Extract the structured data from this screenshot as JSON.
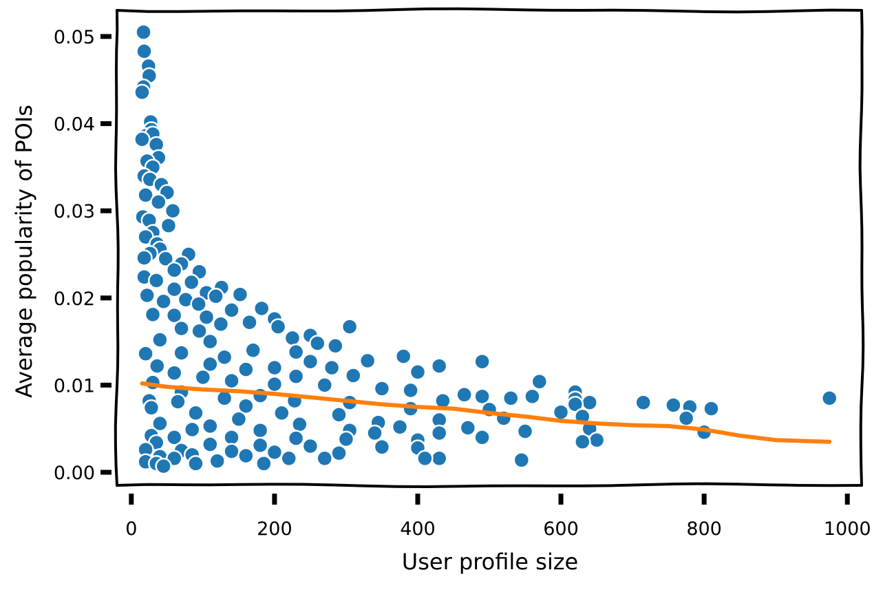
{
  "chart_data": {
    "type": "scatter",
    "title": "",
    "xlabel": "User profile size",
    "ylabel": "Average popularity of POIs",
    "xlim": [
      -20,
      1020
    ],
    "ylim": [
      -0.0015,
      0.053
    ],
    "xticks": [
      0,
      200,
      400,
      600,
      800,
      1000
    ],
    "xtick_labels": [
      "0",
      "200",
      "400",
      "600",
      "800",
      "1000"
    ],
    "yticks": [
      0.0,
      0.01,
      0.02,
      0.03,
      0.04,
      0.05
    ],
    "ytick_labels": [
      "0.00",
      "0.01",
      "0.02",
      "0.03",
      "0.04",
      "0.05"
    ],
    "grid": false,
    "style": "xkcd",
    "series": [
      {
        "kind": "scatter",
        "color": "#1f77b4",
        "edge_color": "#ffffff",
        "points": [
          [
            17,
            0.0505
          ],
          [
            18,
            0.0483
          ],
          [
            24,
            0.0466
          ],
          [
            25,
            0.0455
          ],
          [
            17,
            0.0442
          ],
          [
            15,
            0.0436
          ],
          [
            27,
            0.0402
          ],
          [
            28,
            0.0393
          ],
          [
            20,
            0.0386
          ],
          [
            30,
            0.0388
          ],
          [
            15,
            0.0382
          ],
          [
            35,
            0.0376
          ],
          [
            38,
            0.0361
          ],
          [
            22,
            0.0357
          ],
          [
            30,
            0.035
          ],
          [
            18,
            0.034
          ],
          [
            26,
            0.0336
          ],
          [
            42,
            0.033
          ],
          [
            50,
            0.0321
          ],
          [
            20,
            0.0318
          ],
          [
            38,
            0.031
          ],
          [
            58,
            0.03
          ],
          [
            16,
            0.0293
          ],
          [
            25,
            0.0289
          ],
          [
            52,
            0.0283
          ],
          [
            30,
            0.0275
          ],
          [
            20,
            0.027
          ],
          [
            36,
            0.0262
          ],
          [
            40,
            0.0256
          ],
          [
            26,
            0.0251
          ],
          [
            80,
            0.025
          ],
          [
            18,
            0.0246
          ],
          [
            48,
            0.0245
          ],
          [
            70,
            0.0239
          ],
          [
            60,
            0.0232
          ],
          [
            95,
            0.023
          ],
          [
            18,
            0.0224
          ],
          [
            35,
            0.022
          ],
          [
            84,
            0.0218
          ],
          [
            126,
            0.0212
          ],
          [
            60,
            0.021
          ],
          [
            105,
            0.0206
          ],
          [
            22,
            0.0203
          ],
          [
            152,
            0.0204
          ],
          [
            118,
            0.0202
          ],
          [
            76,
            0.0198
          ],
          [
            45,
            0.0196
          ],
          [
            94,
            0.0193
          ],
          [
            182,
            0.0188
          ],
          [
            140,
            0.0186
          ],
          [
            30,
            0.0181
          ],
          [
            60,
            0.018
          ],
          [
            105,
            0.0178
          ],
          [
            200,
            0.0176
          ],
          [
            165,
            0.0172
          ],
          [
            125,
            0.017
          ],
          [
            205,
            0.0167
          ],
          [
            305,
            0.0167
          ],
          [
            70,
            0.0165
          ],
          [
            95,
            0.0162
          ],
          [
            250,
            0.0157
          ],
          [
            225,
            0.0154
          ],
          [
            40,
            0.0152
          ],
          [
            110,
            0.015
          ],
          [
            260,
            0.0148
          ],
          [
            285,
            0.0145
          ],
          [
            170,
            0.014
          ],
          [
            230,
            0.0138
          ],
          [
            70,
            0.0137
          ],
          [
            20,
            0.0136
          ],
          [
            380,
            0.0133
          ],
          [
            130,
            0.0132
          ],
          [
            330,
            0.0128
          ],
          [
            490,
            0.0127
          ],
          [
            250,
            0.0127
          ],
          [
            110,
            0.0124
          ],
          [
            36,
            0.0122
          ],
          [
            430,
            0.0122
          ],
          [
            200,
            0.012
          ],
          [
            280,
            0.012
          ],
          [
            160,
            0.0118
          ],
          [
            400,
            0.0115
          ],
          [
            60,
            0.0114
          ],
          [
            310,
            0.0111
          ],
          [
            230,
            0.011
          ],
          [
            100,
            0.0109
          ],
          [
            140,
            0.0105
          ],
          [
            30,
            0.0103
          ],
          [
            570,
            0.0104
          ],
          [
            200,
            0.0101
          ],
          [
            270,
            0.01
          ],
          [
            350,
            0.0096
          ],
          [
            390,
            0.0094
          ],
          [
            620,
            0.0092
          ],
          [
            70,
            0.0092
          ],
          [
            465,
            0.0089
          ],
          [
            180,
            0.0088
          ],
          [
            490,
            0.0087
          ],
          [
            560,
            0.0087
          ],
          [
            530,
            0.0085
          ],
          [
            130,
            0.0085
          ],
          [
            620,
            0.0084
          ],
          [
            25,
            0.0082
          ],
          [
            65,
            0.0081
          ],
          [
            228,
            0.0082
          ],
          [
            305,
            0.008
          ],
          [
            435,
            0.0082
          ],
          [
            975,
            0.0085
          ],
          [
            715,
            0.008
          ],
          [
            640,
            0.008
          ],
          [
            757,
            0.0077
          ],
          [
            620,
            0.0078
          ],
          [
            160,
            0.0076
          ],
          [
            780,
            0.0075
          ],
          [
            28,
            0.0074
          ],
          [
            810,
            0.0073
          ],
          [
            390,
            0.0073
          ],
          [
            500,
            0.0072
          ],
          [
            600,
            0.0069
          ],
          [
            90,
            0.0068
          ],
          [
            210,
            0.0068
          ],
          [
            290,
            0.0066
          ],
          [
            630,
            0.0064
          ],
          [
            775,
            0.0062
          ],
          [
            520,
            0.0062
          ],
          [
            150,
            0.0061
          ],
          [
            430,
            0.006
          ],
          [
            345,
            0.0057
          ],
          [
            40,
            0.0056
          ],
          [
            235,
            0.0055
          ],
          [
            110,
            0.0053
          ],
          [
            375,
            0.0052
          ],
          [
            470,
            0.0051
          ],
          [
            640,
            0.005
          ],
          [
            85,
            0.0049
          ],
          [
            305,
            0.0048
          ],
          [
            180,
            0.0048
          ],
          [
            550,
            0.0047
          ],
          [
            800,
            0.0046
          ],
          [
            340,
            0.0045
          ],
          [
            430,
            0.0045
          ],
          [
            28,
            0.0042
          ],
          [
            60,
            0.004
          ],
          [
            140,
            0.004
          ],
          [
            230,
            0.0039
          ],
          [
            490,
            0.004
          ],
          [
            300,
            0.0038
          ],
          [
            400,
            0.0037
          ],
          [
            650,
            0.0037
          ],
          [
            630,
            0.0035
          ],
          [
            35,
            0.0034
          ],
          [
            110,
            0.0032
          ],
          [
            180,
            0.0031
          ],
          [
            250,
            0.003
          ],
          [
            350,
            0.0029
          ],
          [
            400,
            0.0028
          ],
          [
            20,
            0.0026
          ],
          [
            70,
            0.0025
          ],
          [
            140,
            0.0024
          ],
          [
            200,
            0.0023
          ],
          [
            290,
            0.0022
          ],
          [
            85,
            0.002
          ],
          [
            160,
            0.0019
          ],
          [
            40,
            0.0018
          ],
          [
            60,
            0.0016
          ],
          [
            220,
            0.0016
          ],
          [
            270,
            0.0016
          ],
          [
            430,
            0.0016
          ],
          [
            410,
            0.0016
          ],
          [
            545,
            0.0014
          ],
          [
            120,
            0.0013
          ],
          [
            20,
            0.0012
          ],
          [
            35,
            0.001
          ],
          [
            90,
            0.001
          ],
          [
            185,
            0.001
          ],
          [
            45,
            0.0007
          ]
        ]
      },
      {
        "kind": "line",
        "color": "#ff7f0e",
        "points": [
          [
            15,
            0.0102
          ],
          [
            50,
            0.0098
          ],
          [
            100,
            0.0095
          ],
          [
            150,
            0.0093
          ],
          [
            200,
            0.009
          ],
          [
            250,
            0.0086
          ],
          [
            300,
            0.0082
          ],
          [
            350,
            0.0078
          ],
          [
            400,
            0.0075
          ],
          [
            450,
            0.0073
          ],
          [
            500,
            0.0068
          ],
          [
            550,
            0.0064
          ],
          [
            600,
            0.0059
          ],
          [
            650,
            0.0056
          ],
          [
            700,
            0.0054
          ],
          [
            750,
            0.0053
          ],
          [
            800,
            0.0049
          ],
          [
            850,
            0.0042
          ],
          [
            900,
            0.0037
          ],
          [
            975,
            0.0035
          ]
        ]
      }
    ]
  }
}
